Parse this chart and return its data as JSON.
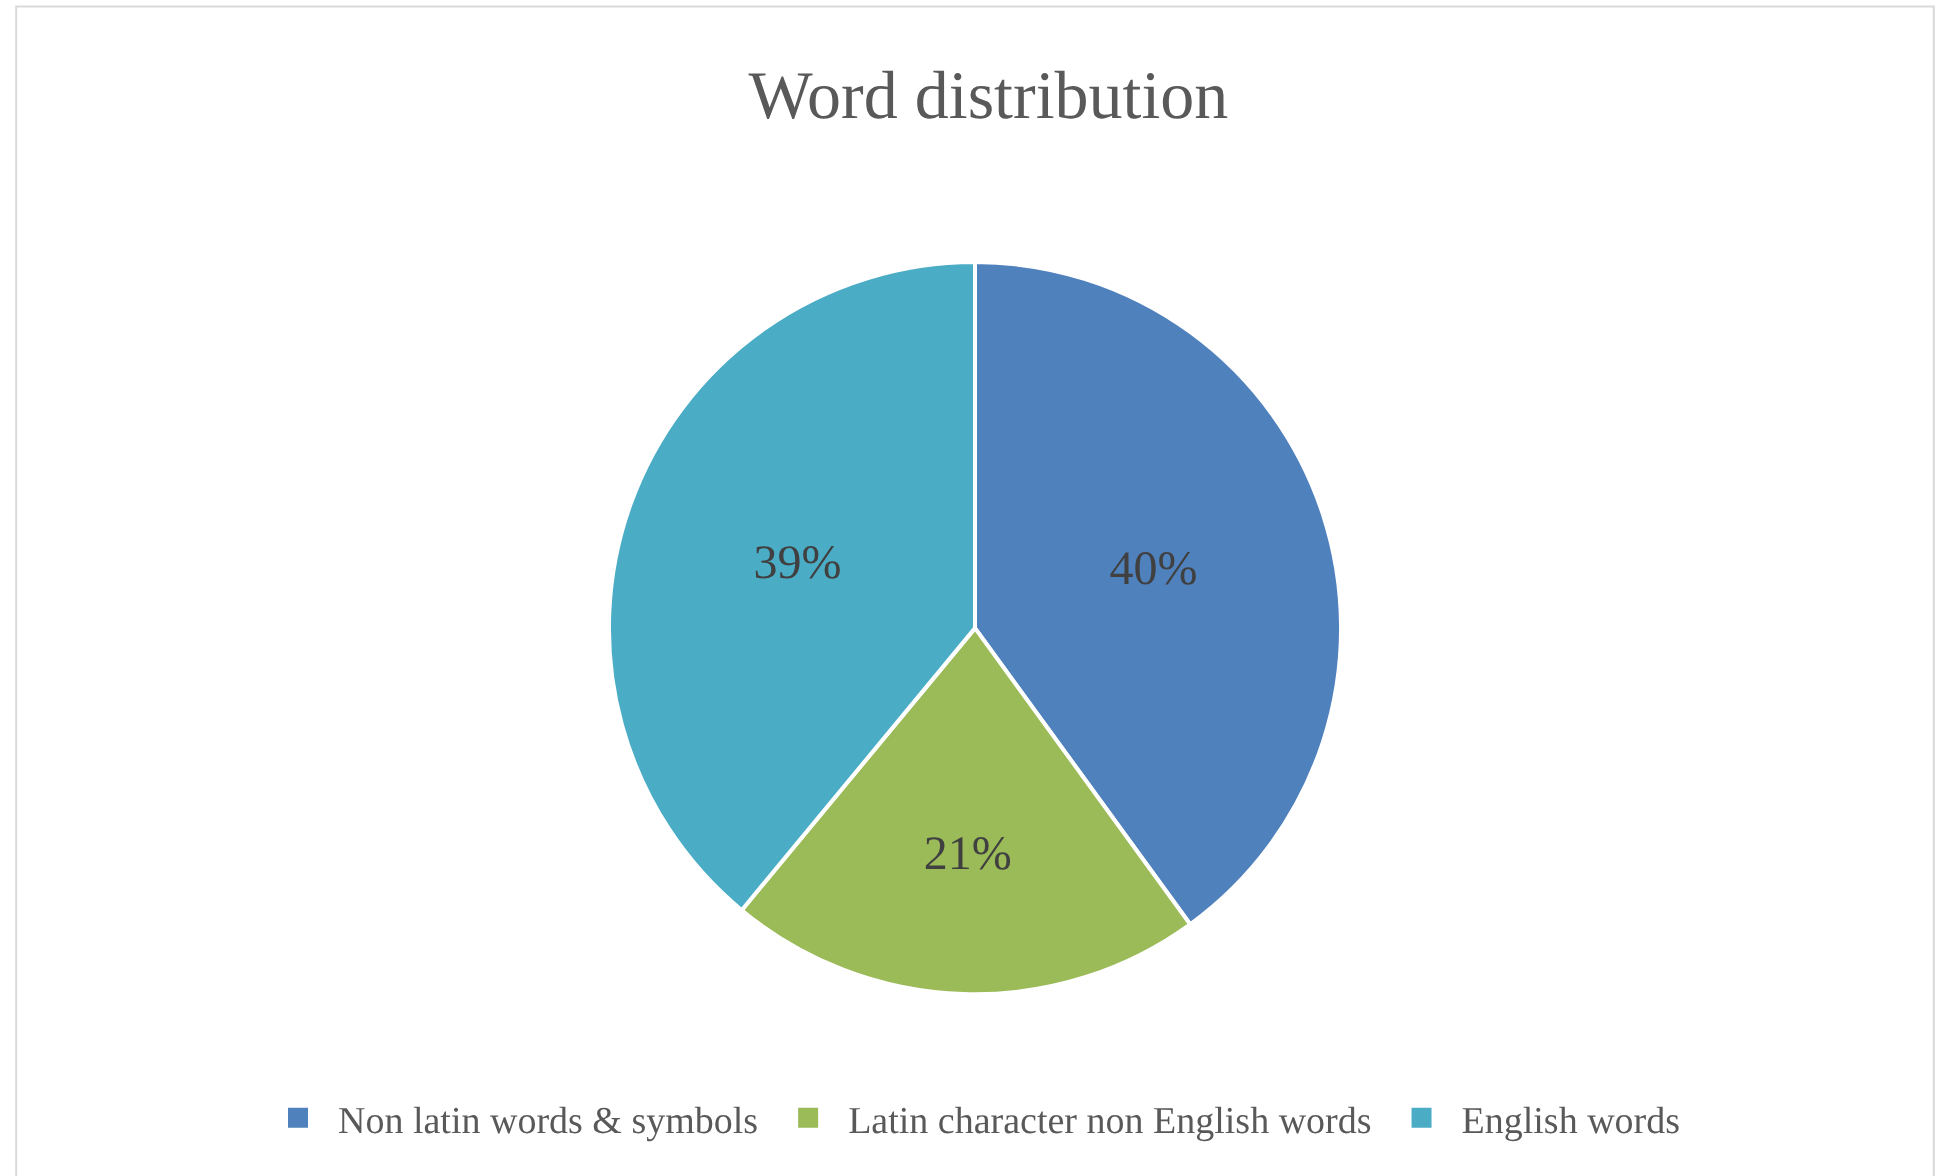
{
  "chart_data": {
    "type": "pie",
    "title": "Word distribution",
    "categories": [
      "Non latin words & symbols",
      "Latin character non English words",
      "English words"
    ],
    "values": [
      40,
      21,
      39
    ],
    "colors": [
      "#4f81bd",
      "#9bbb59",
      "#4bacc6"
    ],
    "value_labels": [
      "40%",
      "21%",
      "39%"
    ],
    "legend": "bottom"
  }
}
